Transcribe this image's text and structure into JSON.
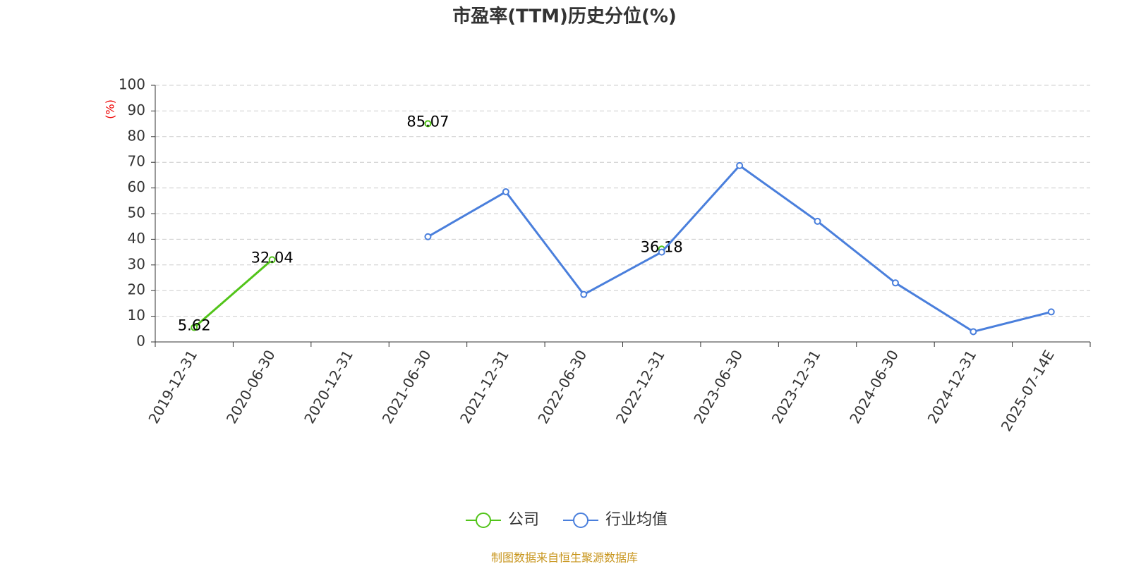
{
  "chart_data": {
    "type": "line",
    "title": "市盈率(TTM)历史分位(%)",
    "y_label": "(%)",
    "categories": [
      "2019-12-31",
      "2020-06-30",
      "2020-12-31",
      "2021-06-30",
      "2021-12-31",
      "2022-06-30",
      "2022-12-31",
      "2023-06-30",
      "2023-12-31",
      "2024-06-30",
      "2024-12-31",
      "2025-07-14E"
    ],
    "series": [
      {
        "name": "公司",
        "color": "#52c41a",
        "values": [
          5.62,
          32.04,
          null,
          85.07,
          null,
          null,
          36.18,
          null,
          null,
          null,
          null,
          null
        ],
        "show_labels": true
      },
      {
        "name": "行业均值",
        "color": "#4a7fdc",
        "values": [
          null,
          null,
          null,
          41,
          58.5,
          18.5,
          35,
          68.7,
          47,
          23,
          4,
          11.7
        ],
        "show_labels": false
      }
    ],
    "ylim": [
      0,
      100
    ],
    "yticks": [
      0,
      10,
      20,
      30,
      40,
      50,
      60,
      70,
      80,
      90,
      100
    ],
    "grid": true,
    "legend": "bottom",
    "source": "制图数据来自恒生聚源数据库"
  }
}
